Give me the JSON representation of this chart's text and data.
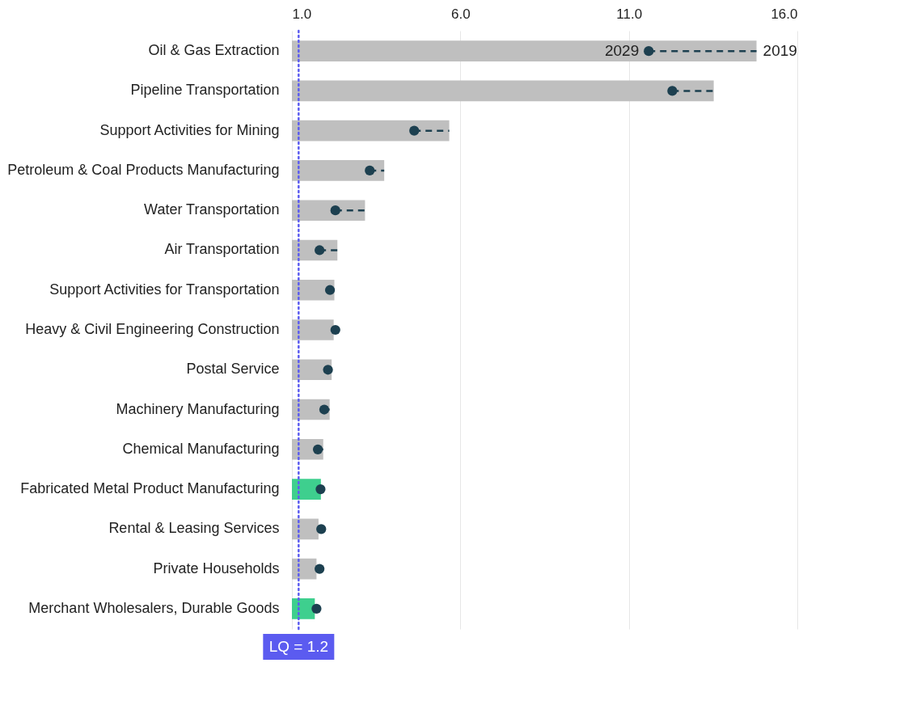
{
  "chart_data": {
    "type": "bar",
    "orientation": "horizontal",
    "categories": [
      "Oil & Gas Extraction",
      "Pipeline Transportation",
      "Support Activities for Mining",
      "Petroleum & Coal Products Manufacturing",
      "Water Transportation",
      "Air Transportation",
      "Support Activities for Transportation",
      "Heavy & Civil Engineering Construction",
      "Postal Service",
      "Machinery Manufacturing",
      "Chemical Manufacturing",
      "Fabricated Metal Product Manufacturing",
      "Rental & Leasing Services",
      "Private Households",
      "Merchant Wholesalers, Durable Goods"
    ],
    "series": [
      {
        "type": "bar",
        "colors": [
          "#bfbfbf",
          "#bfbfbf",
          "#bfbfbf",
          "#bfbfbf",
          "#bfbfbf",
          "#bfbfbf",
          "#bfbfbf",
          "#bfbfbf",
          "#bfbfbf",
          "#bfbfbf",
          "#bfbfbf",
          "#3ecf8e",
          "#bfbfbf",
          "#bfbfbf",
          "#3ecf8e"
        ],
        "values": [
          14.79,
          13.52,
          5.67,
          3.74,
          3.17,
          2.35,
          2.26,
          2.24,
          2.18,
          2.12,
          1.93,
          1.86,
          1.79,
          1.73,
          1.68
        ]
      },
      {
        "type": "scatter",
        "color": "#1d4050",
        "marker": "circle",
        "line_style": "dashed",
        "values": [
          11.59,
          12.29,
          4.63,
          3.31,
          2.29,
          1.82,
          2.13,
          2.29,
          2.07,
          1.96,
          1.77,
          1.85,
          1.87,
          1.82,
          1.73
        ],
        "errors": [
          [
            11.59,
            14.79
          ],
          [
            12.29,
            13.52
          ],
          [
            4.63,
            5.67
          ],
          [
            3.31,
            3.74
          ],
          [
            2.29,
            3.17
          ],
          [
            1.82,
            2.35
          ],
          [
            2.13,
            2.26
          ],
          null,
          [
            2.07,
            2.18
          ],
          [
            1.96,
            2.12
          ],
          [
            1.77,
            1.93
          ],
          null,
          null,
          null,
          null
        ]
      }
    ],
    "xlim": [
      1,
      16
    ],
    "xticks": [
      {
        "value": 1,
        "label": "1.0"
      },
      {
        "value": 6,
        "label": "6.0"
      },
      {
        "value": 11,
        "label": "11.0"
      },
      {
        "value": 16,
        "label": "16.0"
      }
    ],
    "grid": "x",
    "ref_lines": [
      {
        "axis": "x",
        "value": 1.2,
        "label": "LQ = 1.2",
        "color": "#5b5bf0",
        "line_style": "dotted"
      }
    ],
    "annotations": [
      {
        "text": "2029",
        "x": 11.59,
        "y": "Oil & Gas Extraction"
      },
      {
        "text": "2019",
        "x": 14.79,
        "y": "Oil & Gas Extraction"
      }
    ]
  }
}
